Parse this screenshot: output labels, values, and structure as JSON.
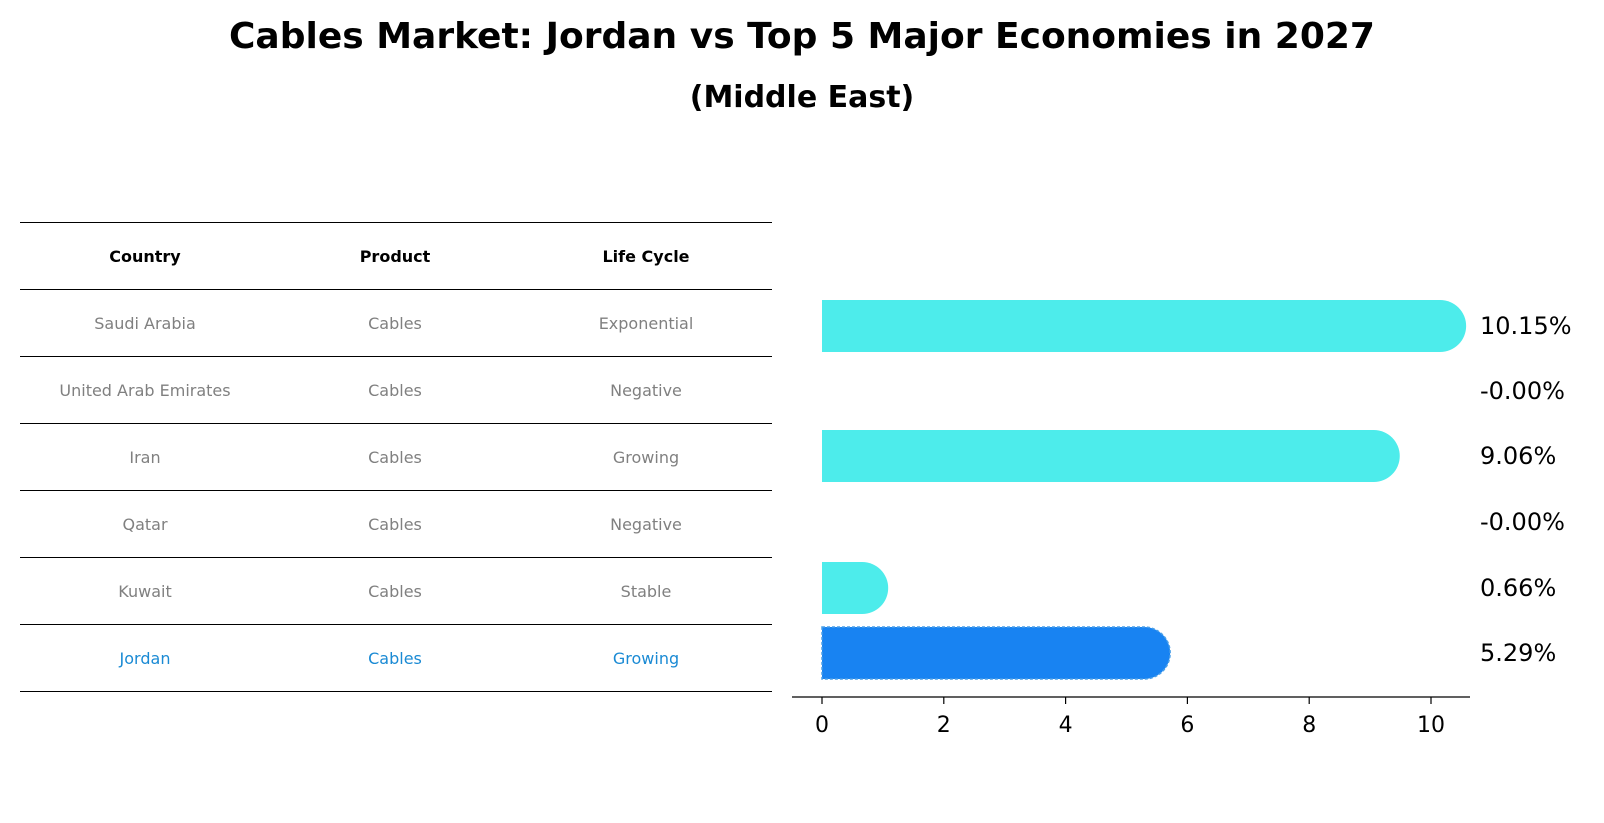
{
  "title": "Cables Market: Jordan vs Top 5 Major Economies in 2027",
  "subtitle": "(Middle East)",
  "table": {
    "headers": [
      "Country",
      "Product",
      "Life Cycle"
    ],
    "rows": [
      {
        "country": "Saudi Arabia",
        "product": "Cables",
        "life_cycle": "Exponential"
      },
      {
        "country": "United Arab Emirates",
        "product": "Cables",
        "life_cycle": "Negative"
      },
      {
        "country": "Iran",
        "product": "Cables",
        "life_cycle": "Growing"
      },
      {
        "country": "Qatar",
        "product": "Cables",
        "life_cycle": "Negative"
      },
      {
        "country": "Kuwait",
        "product": "Cables",
        "life_cycle": "Stable"
      },
      {
        "country": "Jordan",
        "product": "Cables",
        "life_cycle": "Growing"
      }
    ]
  },
  "chart_data": {
    "type": "bar",
    "orientation": "horizontal",
    "categories": [
      "Saudi Arabia",
      "United Arab Emirates",
      "Iran",
      "Qatar",
      "Kuwait",
      "Jordan"
    ],
    "values": [
      10.15,
      -0.0,
      9.06,
      -0.0,
      0.66,
      5.29
    ],
    "value_labels": [
      "10.15%",
      "-0.00%",
      "9.06%",
      "-0.00%",
      "0.66%",
      "5.29%"
    ],
    "highlight": "Jordan",
    "xlim": [
      -0.5,
      10.7
    ],
    "xticks": [
      0,
      2,
      4,
      6,
      8,
      10
    ],
    "xtick_labels": [
      "0",
      "2",
      "4",
      "6",
      "8",
      "10"
    ],
    "colors": {
      "default": "#4deceb",
      "highlight": "#1883f2",
      "highlight_text": "#1a8ad4",
      "muted_text": "#808080"
    }
  }
}
